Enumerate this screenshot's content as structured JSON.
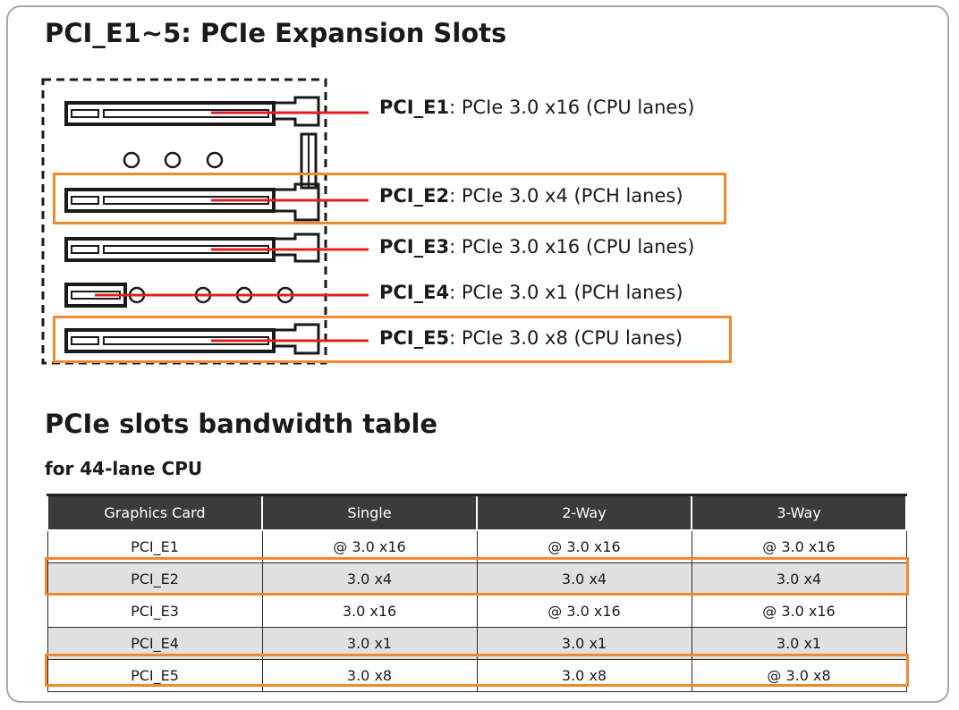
{
  "title": "PCI_E1~5: PCIe Expansion Slots",
  "slots": [
    {
      "name": "PCI_E1",
      "spec": ": PCIe 3.0 x16 (CPU lanes)"
    },
    {
      "name": "PCI_E2",
      "spec": ": PCIe 3.0 x4 (PCH lanes)"
    },
    {
      "name": "PCI_E3",
      "spec": ": PCIe 3.0 x16 (CPU lanes)"
    },
    {
      "name": "PCI_E4",
      "spec": ": PCIe 3.0 x1 (PCH lanes)"
    },
    {
      "name": "PCI_E5",
      "spec": ": PCIe 3.0 x8 (CPU lanes)"
    }
  ],
  "bandwidth": {
    "title": "PCIe slots bandwidth table",
    "subtitle": "for 44-lane CPU",
    "headers": [
      "Graphics Card",
      "Single",
      "2-Way",
      "3-Way"
    ],
    "rows": [
      [
        "PCI_E1",
        "@ 3.0 x16",
        "@ 3.0 x16",
        "@ 3.0 x16"
      ],
      [
        "PCI_E2",
        "3.0 x4",
        "3.0 x4",
        "3.0 x4"
      ],
      [
        "PCI_E3",
        "3.0 x16",
        "@ 3.0 x16",
        "@ 3.0 x16"
      ],
      [
        "PCI_E4",
        "3.0 x1",
        "3.0 x1",
        "3.0 x1"
      ],
      [
        "PCI_E5",
        "3.0 x8",
        "3.0 x8",
        "@ 3.0 x8"
      ]
    ]
  },
  "colors": {
    "highlight": "#f08a2c",
    "leader": "#e02020",
    "header_bg": "#3b3b3b",
    "shade": "#e1e1e1"
  }
}
